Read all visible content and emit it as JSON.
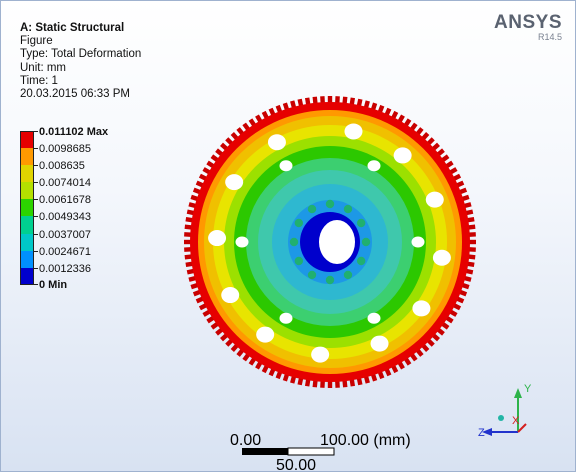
{
  "info": {
    "title": "A: Static Structural",
    "line1": "Figure",
    "line2": "Type: Total Deformation",
    "line3": "Unit: mm",
    "line4": "Time: 1",
    "line5": "20.03.2015 06:33 PM"
  },
  "brand": {
    "logo": "ANSYS",
    "version": "R14.5"
  },
  "legend": {
    "max_label": "0.011102 Max",
    "min_label": "0 Min",
    "values": [
      "0.0098685",
      "0.008635",
      "0.0074014",
      "0.0061678",
      "0.0049343",
      "0.0037007",
      "0.0024671",
      "0.0012336"
    ],
    "colors": [
      "#e60000",
      "#ff9900",
      "#e0d400",
      "#b4e000",
      "#2cd400",
      "#00d090",
      "#00c8c8",
      "#0090ff",
      "#0000cc"
    ]
  },
  "scale": {
    "left": "0.00",
    "right": "100.00 (mm)",
    "mid": "50.00"
  },
  "triad": {
    "y": "Y",
    "z": "Z",
    "x": "X"
  },
  "icons": {
    "ring_gear": "flywheel-model",
    "axes": "coordinate-triad-icon"
  }
}
